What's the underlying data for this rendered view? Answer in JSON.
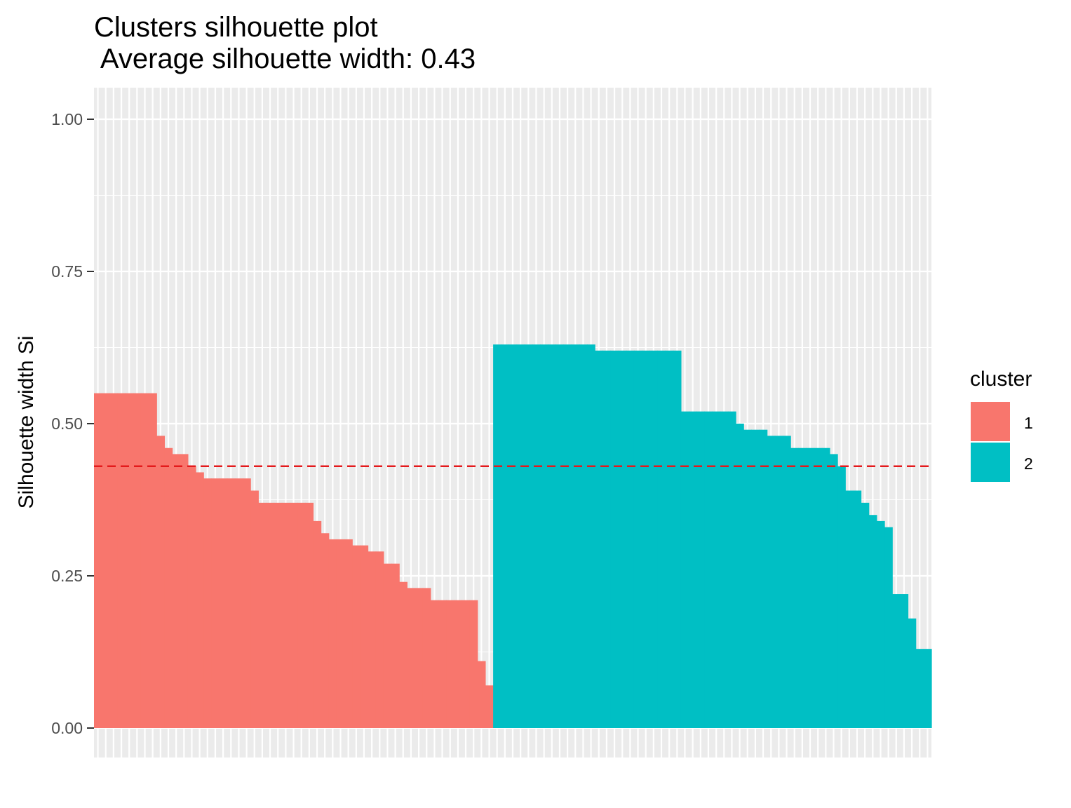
{
  "chart_data": {
    "type": "bar",
    "title": "Clusters silhouette plot",
    "subtitle": " Average silhouette width: 0.43",
    "xlabel": "",
    "ylabel": "Silhouette width Si",
    "ylim": [
      0,
      1.05
    ],
    "yticks": [
      "0.00",
      "0.25",
      "0.50",
      "0.75",
      "1.00"
    ],
    "ytick_values": [
      0,
      0.25,
      0.5,
      0.75,
      1.0
    ],
    "grid": true,
    "average_line": {
      "value": 0.43,
      "color": "#e41a1c",
      "style": "dashed"
    },
    "legend": {
      "title": "cluster",
      "placement": "right",
      "entries": [
        {
          "label": "1",
          "color": "#F8766D"
        },
        {
          "label": "2",
          "color": "#00BFC4"
        }
      ]
    },
    "series": [
      {
        "name": "1",
        "color": "#F8766D",
        "values": [
          0.55,
          0.55,
          0.55,
          0.55,
          0.55,
          0.55,
          0.55,
          0.55,
          0.48,
          0.46,
          0.45,
          0.45,
          0.43,
          0.42,
          0.41,
          0.41,
          0.41,
          0.41,
          0.41,
          0.41,
          0.39,
          0.37,
          0.37,
          0.37,
          0.37,
          0.37,
          0.37,
          0.37,
          0.34,
          0.32,
          0.31,
          0.31,
          0.31,
          0.3,
          0.3,
          0.29,
          0.29,
          0.27,
          0.27,
          0.24,
          0.23,
          0.23,
          0.23,
          0.21,
          0.21,
          0.21,
          0.21,
          0.21,
          0.21,
          0.11,
          0.07
        ]
      },
      {
        "name": "2",
        "color": "#00BFC4",
        "values": [
          0.63,
          0.63,
          0.63,
          0.63,
          0.63,
          0.63,
          0.63,
          0.63,
          0.63,
          0.63,
          0.63,
          0.63,
          0.63,
          0.62,
          0.62,
          0.62,
          0.62,
          0.62,
          0.62,
          0.62,
          0.62,
          0.62,
          0.62,
          0.62,
          0.52,
          0.52,
          0.52,
          0.52,
          0.52,
          0.52,
          0.52,
          0.5,
          0.49,
          0.49,
          0.49,
          0.48,
          0.48,
          0.48,
          0.46,
          0.46,
          0.46,
          0.46,
          0.46,
          0.45,
          0.43,
          0.39,
          0.39,
          0.37,
          0.35,
          0.34,
          0.33,
          0.22,
          0.22,
          0.18,
          0.13,
          0.13
        ]
      }
    ]
  }
}
